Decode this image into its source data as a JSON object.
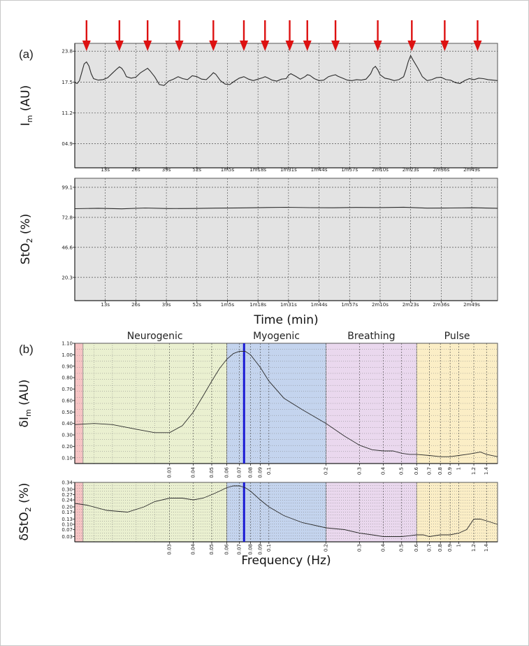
{
  "panel_labels": {
    "a": "(a)",
    "b": "(b)"
  },
  "colors": {
    "time_bg": "#e3e3e3",
    "trace": "#2b2b2b",
    "arrow": "#dd1111",
    "marker_line": "#1a1ad6",
    "band_endothelial": "#f6c4c4",
    "band_neurogenic": "#eaf0d0",
    "band_myogenic": "#c4d4ee",
    "band_breathing": "#ead8ee",
    "band_pulse": "#fbeec6"
  },
  "chart_data": [
    {
      "id": "im_time",
      "type": "line",
      "ylabel": "I",
      "ylabel_sub": "m",
      "ylabel_unit": " (AU)",
      "xlabel": "",
      "ylim": [
        0,
        25.4
      ],
      "xlim": [
        0,
        180
      ],
      "yticks": [
        4.9,
        11.2,
        17.5,
        23.8
      ],
      "ytick_labels": [
        "04.9",
        "11.2",
        "17.5",
        "23.8"
      ],
      "xticks": [
        13,
        26,
        39,
        52,
        65,
        78,
        91,
        104,
        117,
        130,
        143,
        156,
        169
      ],
      "xtick_labels": [
        "13s",
        "26s",
        "39s",
        "52s",
        "1m5s",
        "1m18s",
        "1m31s",
        "1m44s",
        "1m57s",
        "2m10s",
        "2m23s",
        "2m36s",
        "2m49s"
      ],
      "arrows_x": [
        5,
        19,
        31,
        44.5,
        59,
        72,
        81,
        91.5,
        99,
        111,
        129,
        143.5,
        157.5,
        171.5
      ],
      "series": [
        {
          "x": [
            0,
            1,
            2,
            3,
            4,
            5,
            6,
            7,
            8,
            10,
            12,
            14,
            16,
            18,
            19,
            20,
            21,
            22,
            24,
            26,
            28,
            30,
            31,
            32,
            34,
            36,
            38,
            40,
            42,
            44,
            45,
            46,
            48,
            50,
            52,
            54,
            56,
            58,
            59,
            60,
            62,
            64,
            66,
            68,
            70,
            72,
            74,
            76,
            78,
            80,
            81,
            82,
            84,
            86,
            88,
            90,
            91,
            92,
            94,
            96,
            98,
            99,
            100,
            102,
            104,
            106,
            108,
            110,
            111,
            112,
            114,
            116,
            118,
            120,
            122,
            124,
            126,
            127,
            128,
            129,
            130,
            132,
            134,
            136,
            138,
            140,
            141,
            142,
            143,
            144,
            146,
            148,
            150,
            152,
            154,
            156,
            158,
            160,
            162,
            164,
            166,
            168,
            170,
            172,
            174,
            176,
            178,
            180
          ],
          "y": [
            17.4,
            17.2,
            17.8,
            19.5,
            21.2,
            21.6,
            20.8,
            19.2,
            18.2,
            17.9,
            18.0,
            18.4,
            19.3,
            20.2,
            20.6,
            20.3,
            19.6,
            18.6,
            18.3,
            18.5,
            19.4,
            20.0,
            20.3,
            19.8,
            18.6,
            17.0,
            16.8,
            17.7,
            18.1,
            18.6,
            18.4,
            18.2,
            18.0,
            18.8,
            18.6,
            18.1,
            18.0,
            18.9,
            19.4,
            19.1,
            17.8,
            17.1,
            17.0,
            17.7,
            18.3,
            18.6,
            18.1,
            17.8,
            18.1,
            18.4,
            18.6,
            18.4,
            17.9,
            17.7,
            18.1,
            18.2,
            18.9,
            19.2,
            18.7,
            18.1,
            18.6,
            19.0,
            18.9,
            18.2,
            17.8,
            17.9,
            18.6,
            18.9,
            19.0,
            18.7,
            18.3,
            17.9,
            17.8,
            18.0,
            17.9,
            18.1,
            19.2,
            20.3,
            20.7,
            20.0,
            19.0,
            18.3,
            18.1,
            17.8,
            18.0,
            18.6,
            20.0,
            21.7,
            22.9,
            22.0,
            20.4,
            18.6,
            17.8,
            18.0,
            18.4,
            18.5,
            18.0,
            17.9,
            17.4,
            17.2,
            17.8,
            18.2,
            18.0,
            18.3,
            18.2,
            18.0,
            17.9,
            17.8
          ]
        }
      ]
    },
    {
      "id": "sto2_time",
      "type": "line",
      "ylabel": "StO",
      "ylabel_sub": "2",
      "ylabel_unit": " (%)",
      "xlabel": "Time (min)",
      "ylim": [
        0,
        107
      ],
      "xlim": [
        0,
        180
      ],
      "yticks": [
        20.3,
        46.6,
        72.8,
        99.1
      ],
      "ytick_labels": [
        "20.3",
        "46.6",
        "72.8",
        "99.1"
      ],
      "xticks": [
        13,
        26,
        39,
        52,
        65,
        78,
        91,
        104,
        117,
        130,
        143,
        156,
        169
      ],
      "xtick_labels": [
        "13s",
        "26s",
        "39s",
        "52s",
        "1m5s",
        "1m18s",
        "1m31s",
        "1m44s",
        "1m57s",
        "2m10s",
        "2m23s",
        "2m36s",
        "2m49s"
      ],
      "series": [
        {
          "x": [
            0,
            10,
            20,
            30,
            40,
            50,
            60,
            70,
            80,
            90,
            100,
            110,
            120,
            130,
            140,
            150,
            160,
            170,
            180
          ],
          "y": [
            80.4,
            80.8,
            80.3,
            81.0,
            80.5,
            80.6,
            80.9,
            81.1,
            81.4,
            81.6,
            81.3,
            81.2,
            81.5,
            81.4,
            81.7,
            80.9,
            81.0,
            81.2,
            80.8
          ]
        }
      ]
    },
    {
      "id": "delta_im_freq",
      "type": "line",
      "ylabel": "δI",
      "ylabel_sub": "m",
      "ylabel_unit": " (AU)",
      "xlabel": "",
      "xscale": "log",
      "xlim": [
        0.0095,
        1.6
      ],
      "ylim": [
        0.05,
        1.1
      ],
      "yticks": [
        0.1,
        0.2,
        0.3,
        0.4,
        0.5,
        0.6,
        0.7,
        0.8,
        0.9,
        1.0,
        1.1
      ],
      "ytick_labels": [
        "0.10",
        "0.20",
        "0.30",
        "0.40",
        "0.50",
        "0.60",
        "0.70",
        "0.80",
        "0.90",
        "1.00",
        "1.10"
      ],
      "xticks": [
        0.03,
        0.04,
        0.05,
        0.06,
        0.07,
        0.08,
        0.09,
        0.1,
        0.2,
        0.3,
        0.4,
        0.5,
        0.6,
        0.7,
        0.8,
        0.9,
        1,
        1.2,
        1.4
      ],
      "xtick_labels": [
        "0.03",
        "0.04",
        "0.05",
        "0.06",
        "0.07",
        "0.08",
        "0.09",
        "0.1",
        "0.2",
        "0.3",
        "0.4",
        "0.5",
        "0.6",
        "0.7",
        "0.8",
        "0.9",
        "1",
        "1.2",
        "1.4"
      ],
      "marker_x": 0.074,
      "bands": [
        {
          "name": "",
          "from": 0.0095,
          "to": 0.0105,
          "color_key": "band_endothelial"
        },
        {
          "name": "Neurogenic",
          "from": 0.0105,
          "to": 0.06,
          "color_key": "band_neurogenic"
        },
        {
          "name": "Myogenic",
          "from": 0.06,
          "to": 0.2,
          "color_key": "band_myogenic"
        },
        {
          "name": "Breathing",
          "from": 0.2,
          "to": 0.6,
          "color_key": "band_breathing"
        },
        {
          "name": "Pulse",
          "from": 0.6,
          "to": 1.6,
          "color_key": "band_pulse"
        }
      ],
      "series": [
        {
          "x": [
            0.0095,
            0.012,
            0.015,
            0.02,
            0.025,
            0.03,
            0.035,
            0.04,
            0.045,
            0.05,
            0.055,
            0.06,
            0.065,
            0.07,
            0.075,
            0.08,
            0.09,
            0.1,
            0.12,
            0.15,
            0.2,
            0.25,
            0.3,
            0.35,
            0.4,
            0.45,
            0.5,
            0.55,
            0.6,
            0.7,
            0.8,
            0.9,
            1.0,
            1.1,
            1.2,
            1.3,
            1.4,
            1.6
          ],
          "y": [
            0.39,
            0.4,
            0.39,
            0.35,
            0.32,
            0.32,
            0.38,
            0.5,
            0.64,
            0.77,
            0.88,
            0.96,
            1.01,
            1.03,
            1.03,
            1.0,
            0.89,
            0.77,
            0.62,
            0.52,
            0.4,
            0.29,
            0.21,
            0.17,
            0.16,
            0.16,
            0.14,
            0.13,
            0.13,
            0.12,
            0.11,
            0.11,
            0.12,
            0.13,
            0.14,
            0.15,
            0.13,
            0.11
          ]
        }
      ]
    },
    {
      "id": "delta_sto2_freq",
      "type": "line",
      "ylabel": "δStO",
      "ylabel_sub": "2",
      "ylabel_unit": " (%)",
      "xlabel": "Frequency (Hz)",
      "xscale": "log",
      "xlim": [
        0.0095,
        1.6
      ],
      "ylim": [
        0.0,
        0.34
      ],
      "yticks": [
        0.03,
        0.07,
        0.1,
        0.13,
        0.17,
        0.2,
        0.24,
        0.27,
        0.3,
        0.34
      ],
      "ytick_labels": [
        "0.03",
        "0.07",
        "0.10",
        "0.13",
        "0.17",
        "0.20",
        "0.24",
        "0.27",
        "0.30",
        "0.34"
      ],
      "xticks": [
        0.03,
        0.04,
        0.05,
        0.06,
        0.07,
        0.08,
        0.09,
        0.1,
        0.2,
        0.3,
        0.4,
        0.5,
        0.6,
        0.7,
        0.8,
        0.9,
        1,
        1.2,
        1.4
      ],
      "xtick_labels": [
        "0.03",
        "0.04",
        "0.05",
        "0.06",
        "0.07",
        "0.08",
        "0.09",
        "0.1",
        "0.2",
        "0.3",
        "0.4",
        "0.5",
        "0.6",
        "0.7",
        "0.8",
        "0.9",
        "1",
        "1.2",
        "1.4"
      ],
      "marker_x": 0.074,
      "bands": [
        {
          "name": "",
          "from": 0.0095,
          "to": 0.0105,
          "color_key": "band_endothelial"
        },
        {
          "name": "",
          "from": 0.0105,
          "to": 0.06,
          "color_key": "band_neurogenic"
        },
        {
          "name": "",
          "from": 0.06,
          "to": 0.2,
          "color_key": "band_myogenic"
        },
        {
          "name": "",
          "from": 0.2,
          "to": 0.6,
          "color_key": "band_breathing"
        },
        {
          "name": "",
          "from": 0.6,
          "to": 1.6,
          "color_key": "band_pulse"
        }
      ],
      "series": [
        {
          "x": [
            0.0095,
            0.011,
            0.014,
            0.018,
            0.022,
            0.025,
            0.03,
            0.035,
            0.04,
            0.045,
            0.05,
            0.055,
            0.06,
            0.065,
            0.07,
            0.075,
            0.08,
            0.09,
            0.1,
            0.12,
            0.15,
            0.2,
            0.25,
            0.3,
            0.35,
            0.4,
            0.45,
            0.5,
            0.55,
            0.6,
            0.65,
            0.7,
            0.8,
            0.9,
            1.0,
            1.1,
            1.2,
            1.3,
            1.4,
            1.6
          ],
          "y": [
            0.22,
            0.21,
            0.18,
            0.17,
            0.2,
            0.23,
            0.25,
            0.25,
            0.24,
            0.25,
            0.27,
            0.29,
            0.31,
            0.32,
            0.32,
            0.31,
            0.29,
            0.24,
            0.2,
            0.15,
            0.11,
            0.08,
            0.07,
            0.05,
            0.04,
            0.03,
            0.03,
            0.03,
            0.035,
            0.04,
            0.04,
            0.03,
            0.04,
            0.04,
            0.05,
            0.07,
            0.13,
            0.13,
            0.12,
            0.1
          ]
        }
      ]
    }
  ]
}
